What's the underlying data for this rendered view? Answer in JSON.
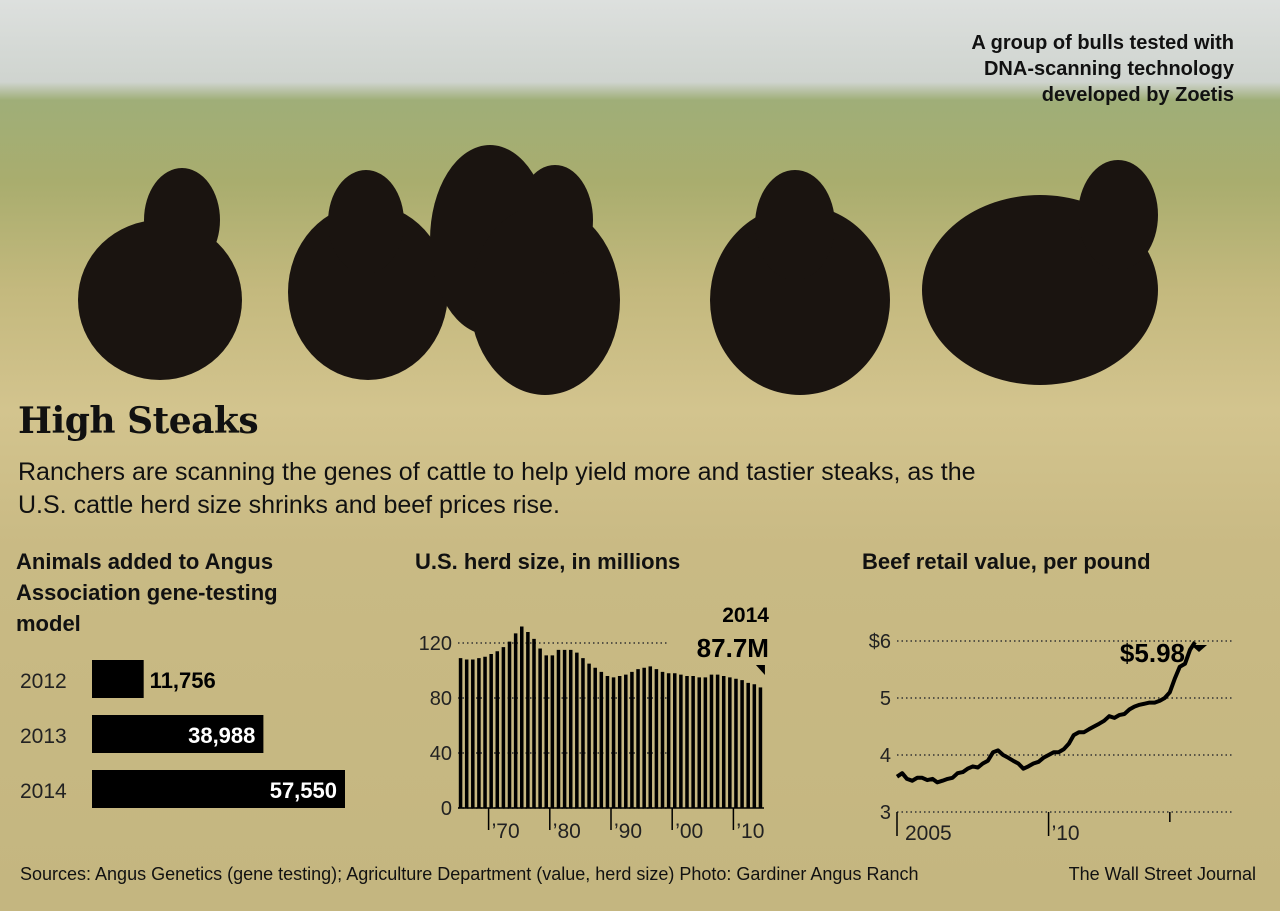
{
  "caption": "A group of bulls tested with\nDNA-scanning technology\ndeveloped by Zoetis",
  "headline": "High Steaks",
  "dek": "Ranchers are scanning the genes of cattle to help yield more and tastier steaks, as the U.S. cattle herd size shrinks and beef prices rise.",
  "colors": {
    "bar": "#000000",
    "background": "#c8bb84",
    "grass": "#b8a868",
    "sky": "#d8dcd8"
  },
  "chart_data": [
    {
      "type": "bar",
      "orientation": "horizontal",
      "title": "Animals added to Angus Association gene-testing model",
      "categories": [
        "2012",
        "2013",
        "2014"
      ],
      "values": [
        11756,
        38988,
        57550
      ],
      "value_labels": [
        "11,756",
        "38,988",
        "57,550"
      ]
    },
    {
      "type": "bar",
      "title": "U.S. herd size, in millions",
      "x": [
        1965,
        1966,
        1967,
        1968,
        1969,
        1970,
        1971,
        1972,
        1973,
        1974,
        1975,
        1976,
        1977,
        1978,
        1979,
        1980,
        1981,
        1982,
        1983,
        1984,
        1985,
        1986,
        1987,
        1988,
        1989,
        1990,
        1991,
        1992,
        1993,
        1994,
        1995,
        1996,
        1997,
        1998,
        1999,
        2000,
        2001,
        2002,
        2003,
        2004,
        2005,
        2006,
        2007,
        2008,
        2009,
        2010,
        2011,
        2012,
        2013,
        2014
      ],
      "values": [
        109,
        108,
        108,
        109,
        110,
        112,
        114,
        117,
        121,
        127,
        132,
        128,
        123,
        116,
        111,
        111,
        115,
        115,
        115,
        113,
        109,
        105,
        102,
        99,
        96,
        95,
        96,
        97,
        99,
        101,
        102,
        103,
        101,
        99,
        98,
        98,
        97,
        96,
        96,
        95,
        95,
        97,
        97,
        96,
        95,
        94,
        93,
        91,
        90,
        87.7
      ],
      "xticks": [
        "’70",
        "’80",
        "’90",
        "’00",
        "’10"
      ],
      "ylim": [
        0,
        120
      ],
      "yticks": [
        "0",
        "40",
        "80",
        "120"
      ],
      "annotation": {
        "label": "2014",
        "value": "87.7M"
      }
    },
    {
      "type": "line",
      "title": "Beef retail value, per pound",
      "x": [
        2005.0,
        2005.17,
        2005.33,
        2005.5,
        2005.67,
        2005.83,
        2006.0,
        2006.17,
        2006.33,
        2006.5,
        2006.67,
        2006.83,
        2007.0,
        2007.17,
        2007.33,
        2007.5,
        2007.67,
        2007.83,
        2008.0,
        2008.17,
        2008.33,
        2008.5,
        2008.67,
        2008.83,
        2009.0,
        2009.17,
        2009.33,
        2009.5,
        2009.67,
        2009.83,
        2010.0,
        2010.17,
        2010.33,
        2010.5,
        2010.67,
        2010.83,
        2011.0,
        2011.17,
        2011.33,
        2011.5,
        2011.67,
        2011.83,
        2012.0,
        2012.17,
        2012.33,
        2012.5,
        2012.67,
        2012.83,
        2013.0,
        2013.17,
        2013.33,
        2013.5,
        2013.67,
        2013.83,
        2014.0,
        2014.17,
        2014.33,
        2014.5,
        2014.67,
        2014.83
      ],
      "y": [
        3.62,
        3.68,
        3.58,
        3.55,
        3.6,
        3.6,
        3.56,
        3.58,
        3.52,
        3.55,
        3.58,
        3.6,
        3.68,
        3.7,
        3.76,
        3.8,
        3.78,
        3.85,
        3.9,
        4.05,
        4.08,
        4.0,
        3.95,
        3.9,
        3.85,
        3.76,
        3.8,
        3.85,
        3.88,
        3.95,
        4.0,
        4.05,
        4.05,
        4.1,
        4.2,
        4.35,
        4.4,
        4.4,
        4.45,
        4.5,
        4.55,
        4.6,
        4.68,
        4.65,
        4.7,
        4.72,
        4.8,
        4.85,
        4.88,
        4.9,
        4.92,
        4.92,
        4.95,
        5.0,
        5.1,
        5.35,
        5.55,
        5.6,
        5.85,
        5.98
      ],
      "xticks": [
        "2005",
        "’10"
      ],
      "ylim": [
        3,
        6
      ],
      "yticks": [
        "3",
        "4",
        "5",
        "$6"
      ],
      "annotation": {
        "value": "$5.98"
      }
    }
  ],
  "source": "Sources: Angus Genetics (gene testing); Agriculture Department (value, herd size) Photo: Gardiner Angus Ranch",
  "credit": "The Wall Street Journal"
}
